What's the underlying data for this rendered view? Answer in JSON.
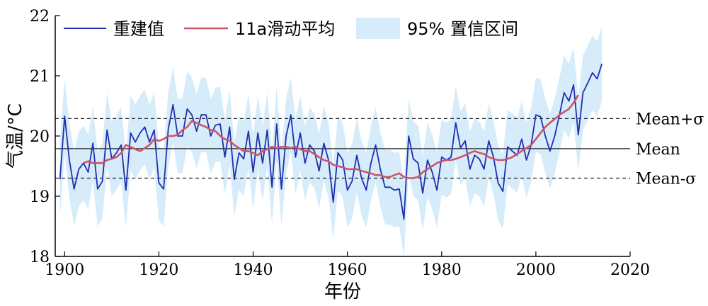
{
  "chart_data": {
    "type": "line",
    "xlabel": "年份",
    "ylabel": "气温/°C",
    "xlim": [
      1898,
      2020
    ],
    "ylim": [
      18,
      22
    ],
    "xticks": [
      1900,
      1920,
      1940,
      1960,
      1980,
      2000,
      2020
    ],
    "yticks": [
      18,
      19,
      20,
      21,
      22
    ],
    "grid": false,
    "legend": {
      "position": "top",
      "entries": [
        "重建值",
        "11a滑动平均",
        "95% 置信区间"
      ]
    },
    "colors": {
      "reconstruction": "#1f2fb0",
      "moving_average": "#cc5566",
      "ci_fill": "#d6ecfa"
    },
    "ci_half_width": 0.62,
    "reference_lines": [
      {
        "label": "Mean+σ",
        "value": 20.29,
        "style": "dashed"
      },
      {
        "label": "Mean",
        "value": 19.79,
        "style": "solid"
      },
      {
        "label": "Mean-σ",
        "value": 19.3,
        "style": "dashed"
      }
    ],
    "series": [
      {
        "name": "重建值",
        "x": [
          1899,
          1900,
          1901,
          1902,
          1903,
          1904,
          1905,
          1906,
          1907,
          1908,
          1909,
          1910,
          1911,
          1912,
          1913,
          1914,
          1915,
          1916,
          1917,
          1918,
          1919,
          1920,
          1921,
          1922,
          1923,
          1924,
          1925,
          1926,
          1927,
          1928,
          1929,
          1930,
          1931,
          1932,
          1933,
          1934,
          1935,
          1936,
          1937,
          1938,
          1939,
          1940,
          1941,
          1942,
          1943,
          1944,
          1945,
          1946,
          1947,
          1948,
          1949,
          1950,
          1951,
          1952,
          1953,
          1954,
          1955,
          1956,
          1957,
          1958,
          1959,
          1960,
          1961,
          1962,
          1963,
          1964,
          1965,
          1966,
          1967,
          1968,
          1969,
          1970,
          1971,
          1972,
          1973,
          1974,
          1975,
          1976,
          1977,
          1978,
          1979,
          1980,
          1981,
          1982,
          1983,
          1984,
          1985,
          1986,
          1987,
          1988,
          1989,
          1990,
          1991,
          1992,
          1993,
          1994,
          1995,
          1996,
          1997,
          1998,
          1999,
          2000,
          2001,
          2002,
          2003,
          2004,
          2005,
          2006,
          2007,
          2008,
          2009,
          2010,
          2011,
          2012,
          2013,
          2014
        ],
        "values": [
          19.28,
          20.33,
          19.6,
          19.12,
          19.45,
          19.55,
          19.4,
          19.88,
          19.12,
          19.25,
          20.1,
          19.62,
          19.72,
          19.85,
          19.1,
          20.05,
          19.9,
          20.05,
          20.15,
          19.9,
          20.1,
          19.22,
          19.12,
          20.12,
          20.52,
          20.0,
          20.0,
          20.45,
          20.35,
          20.08,
          20.35,
          20.35,
          20.0,
          20.18,
          20.2,
          19.65,
          20.15,
          19.28,
          19.72,
          19.62,
          20.08,
          19.4,
          20.05,
          19.55,
          20.1,
          19.15,
          20.2,
          19.12,
          20.0,
          20.35,
          19.65,
          20.05,
          19.55,
          19.85,
          19.75,
          19.42,
          19.88,
          19.6,
          18.9,
          19.72,
          19.6,
          19.1,
          19.25,
          19.68,
          19.3,
          19.1,
          19.55,
          19.85,
          19.45,
          19.15,
          19.15,
          19.1,
          19.12,
          18.62,
          20.0,
          19.62,
          19.55,
          19.05,
          19.6,
          19.4,
          19.1,
          19.65,
          19.6,
          19.65,
          20.22,
          19.8,
          19.92,
          19.45,
          19.68,
          19.62,
          19.45,
          19.92,
          19.65,
          19.22,
          19.08,
          19.82,
          19.75,
          19.68,
          19.95,
          19.6,
          19.85,
          20.35,
          20.32,
          20.0,
          19.75,
          20.0,
          20.35,
          20.72,
          20.58,
          20.85,
          20.02,
          20.72,
          20.88,
          21.05,
          20.95,
          21.2
        ]
      },
      {
        "name": "11a滑动平均",
        "x": [
          1904,
          1905,
          1906,
          1907,
          1908,
          1909,
          1910,
          1911,
          1912,
          1913,
          1914,
          1915,
          1916,
          1917,
          1918,
          1919,
          1920,
          1921,
          1922,
          1923,
          1924,
          1925,
          1926,
          1927,
          1928,
          1929,
          1930,
          1931,
          1932,
          1933,
          1934,
          1935,
          1936,
          1937,
          1938,
          1939,
          1940,
          1941,
          1942,
          1943,
          1944,
          1945,
          1946,
          1947,
          1948,
          1949,
          1950,
          1951,
          1952,
          1953,
          1954,
          1955,
          1956,
          1957,
          1958,
          1959,
          1960,
          1961,
          1962,
          1963,
          1964,
          1965,
          1966,
          1967,
          1968,
          1969,
          1970,
          1971,
          1972,
          1973,
          1974,
          1975,
          1976,
          1977,
          1978,
          1979,
          1980,
          1981,
          1982,
          1983,
          1984,
          1985,
          1986,
          1987,
          1988,
          1989,
          1990,
          1991,
          1992,
          1993,
          1994,
          1995,
          1996,
          1997,
          1998,
          1999,
          2000,
          2001,
          2002,
          2003,
          2004,
          2005,
          2006,
          2007,
          2008,
          2009
        ],
        "values": [
          19.55,
          19.58,
          19.55,
          19.55,
          19.55,
          19.6,
          19.62,
          19.65,
          19.72,
          19.85,
          19.82,
          19.78,
          19.75,
          19.8,
          19.85,
          19.95,
          19.92,
          19.95,
          20.0,
          20.0,
          20.02,
          20.1,
          20.15,
          20.25,
          20.22,
          20.18,
          20.15,
          20.1,
          20.08,
          20.0,
          19.95,
          19.92,
          19.85,
          19.8,
          19.75,
          19.75,
          19.72,
          19.68,
          19.75,
          19.78,
          19.82,
          19.8,
          19.82,
          19.82,
          19.8,
          19.82,
          19.78,
          19.75,
          19.75,
          19.7,
          19.65,
          19.6,
          19.58,
          19.52,
          19.5,
          19.48,
          19.45,
          19.45,
          19.45,
          19.42,
          19.4,
          19.38,
          19.35,
          19.35,
          19.32,
          19.32,
          19.35,
          19.38,
          19.32,
          19.3,
          19.3,
          19.32,
          19.4,
          19.45,
          19.5,
          19.55,
          19.58,
          19.6,
          19.6,
          19.62,
          19.65,
          19.68,
          19.72,
          19.75,
          19.72,
          19.7,
          19.65,
          19.62,
          19.6,
          19.6,
          19.62,
          19.65,
          19.7,
          19.75,
          19.8,
          19.85,
          19.95,
          20.05,
          20.15,
          20.22,
          20.28,
          20.35,
          20.4,
          20.45,
          20.55,
          20.68
        ]
      }
    ]
  }
}
